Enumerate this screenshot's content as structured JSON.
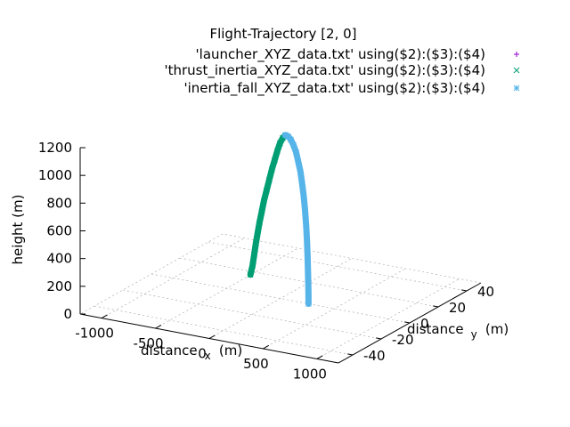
{
  "chart_data": {
    "type": "scatter",
    "title": "Flight-Trajectory [2, 0]",
    "xlabel": "distance x (m)",
    "xlabel_main": "distance",
    "xlabel_sub": "x",
    "xlabel_unit": "(m)",
    "ylabel": "distance y (m)",
    "ylabel_main": "distance",
    "ylabel_sub": "y",
    "ylabel_unit": "(m)",
    "zlabel": "height (m)",
    "view": [
      2,
      0
    ],
    "xlim": [
      -1200,
      1200
    ],
    "ylim": [
      -50,
      50
    ],
    "zlim": [
      0,
      1200
    ],
    "x_ticks": [
      "-1000",
      "-500",
      "0",
      "500",
      "1000"
    ],
    "y_ticks": [
      "-40",
      "-20",
      "0",
      "20",
      "40"
    ],
    "z_ticks": [
      "0",
      "200",
      "400",
      "600",
      "800",
      "1000",
      "1200"
    ],
    "grid": true,
    "legend_position": "top-right",
    "series": [
      {
        "name": "'launcher_XYZ_data.txt' using($2):($3):($4)",
        "marker": "+",
        "color": "#9400d3",
        "points": []
      },
      {
        "name": "'thrust_inertia_XYZ_data.txt' using($2):($3):($4)",
        "marker": "x",
        "color": "#009e73",
        "points": [
          [
            -280,
            0,
            130
          ],
          [
            -260,
            0,
            200
          ],
          [
            -245,
            0,
            280
          ],
          [
            -230,
            0,
            360
          ],
          [
            -215,
            0,
            430
          ],
          [
            -195,
            0,
            520
          ],
          [
            -175,
            0,
            600
          ],
          [
            -155,
            0,
            680
          ],
          [
            -130,
            0,
            760
          ],
          [
            -105,
            0,
            840
          ],
          [
            -80,
            0,
            920
          ],
          [
            -55,
            0,
            990
          ],
          [
            -30,
            0,
            1060
          ],
          [
            -5,
            0,
            1120
          ],
          [
            20,
            0,
            1160
          ],
          [
            45,
            0,
            1185
          ]
        ]
      },
      {
        "name": "'inertia_fall_XYZ_data.txt' using($2):($3):($4)",
        "marker": "*",
        "color": "#56b4e9",
        "points": [
          [
            45,
            0,
            1185
          ],
          [
            70,
            0,
            1180
          ],
          [
            95,
            0,
            1160
          ],
          [
            120,
            0,
            1125
          ],
          [
            145,
            0,
            1075
          ],
          [
            165,
            0,
            1010
          ],
          [
            185,
            0,
            940
          ],
          [
            200,
            0,
            860
          ],
          [
            215,
            0,
            770
          ],
          [
            228,
            0,
            670
          ],
          [
            238,
            0,
            560
          ],
          [
            246,
            0,
            450
          ],
          [
            252,
            0,
            330
          ],
          [
            256,
            0,
            210
          ],
          [
            259,
            0,
            90
          ],
          [
            260,
            0,
            0
          ]
        ]
      }
    ]
  }
}
